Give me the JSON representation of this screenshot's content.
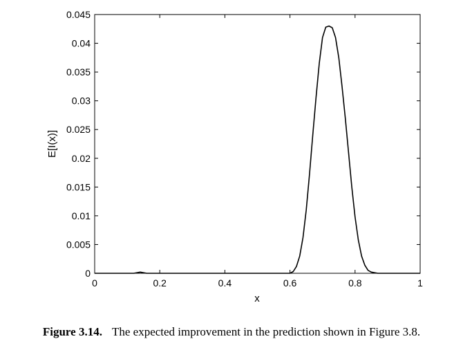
{
  "chart_data": {
    "type": "line",
    "xlabel": "x",
    "ylabel": "E[I(x)]",
    "xlim": [
      0,
      1
    ],
    "ylim": [
      0,
      0.045
    ],
    "grid": false,
    "x_ticks": [
      0,
      0.2,
      0.4,
      0.6,
      0.8,
      1
    ],
    "x_tick_labels": [
      "0",
      "0.2",
      "0.4",
      "0.6",
      "0.8",
      "1"
    ],
    "y_ticks": [
      0,
      0.005,
      0.01,
      0.015,
      0.02,
      0.025,
      0.03,
      0.035,
      0.04,
      0.045
    ],
    "y_tick_labels": [
      "0",
      "0.005",
      "0.01",
      "0.015",
      "0.02",
      "0.025",
      "0.03",
      "0.035",
      "0.04",
      "0.045"
    ],
    "series": [
      {
        "color": "#000000",
        "x": [
          0,
          0.12,
          0.13,
          0.14,
          0.15,
          0.16,
          0.5,
          0.6,
          0.61,
          0.62,
          0.63,
          0.64,
          0.65,
          0.66,
          0.67,
          0.68,
          0.69,
          0.7,
          0.71,
          0.72,
          0.73,
          0.74,
          0.75,
          0.76,
          0.77,
          0.78,
          0.79,
          0.8,
          0.81,
          0.82,
          0.83,
          0.84,
          0.85,
          0.86,
          0.87,
          0.88,
          1
        ],
        "y": [
          0,
          0,
          0.0001,
          0.0002,
          0.0001,
          0,
          0,
          0,
          0.0003,
          0.0012,
          0.003,
          0.0062,
          0.011,
          0.0172,
          0.024,
          0.0305,
          0.0365,
          0.041,
          0.0428,
          0.043,
          0.0427,
          0.041,
          0.0375,
          0.0325,
          0.027,
          0.021,
          0.015,
          0.0098,
          0.0058,
          0.003,
          0.0014,
          0.0005,
          0.0002,
          0.0001,
          0,
          0,
          0
        ]
      }
    ]
  },
  "caption": {
    "label": "Figure 3.14.",
    "text": "The expected improvement in the prediction shown in Figure 3.8."
  }
}
